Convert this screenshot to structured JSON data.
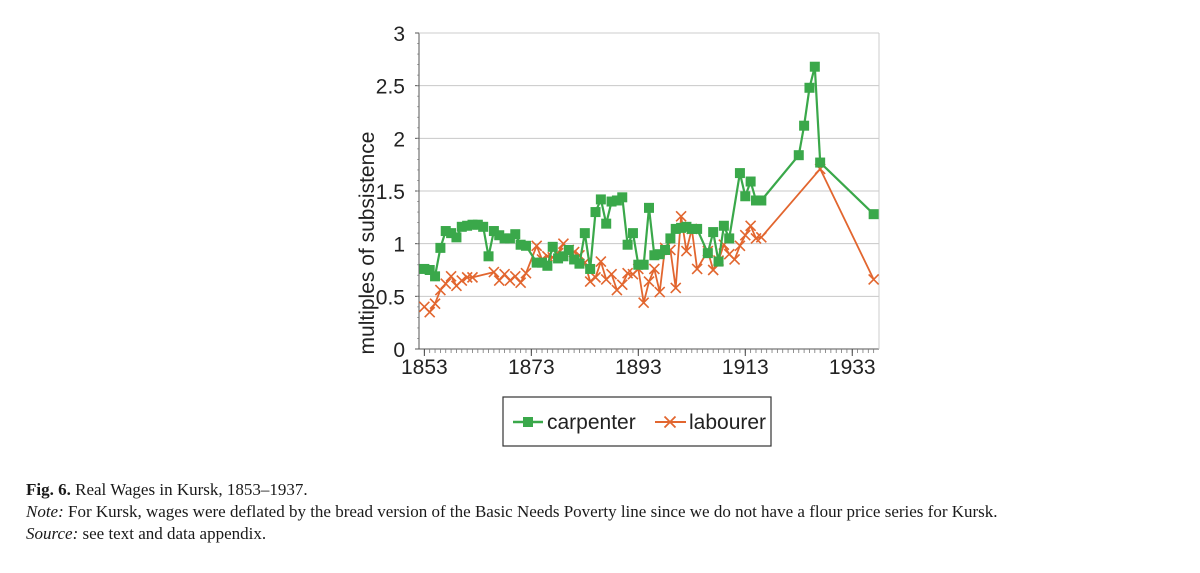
{
  "chart_data": {
    "type": "line",
    "ylabel": "multiples of subsistence",
    "xlabel": "",
    "xlim": [
      1852,
      1938
    ],
    "ylim": [
      0,
      3
    ],
    "x_ticks": [
      "1853",
      "1873",
      "1893",
      "1913",
      "1933"
    ],
    "y_ticks": [
      "0",
      "0.5",
      "1",
      "1.5",
      "2",
      "2.5",
      "3"
    ],
    "grid": "horizontal",
    "legend": "bottom-center",
    "series": [
      {
        "name": "carpenter",
        "color": "#3aa84a",
        "marker": "square",
        "x": [
          1853,
          1854,
          1855,
          1856,
          1857,
          1858,
          1859,
          1860,
          1861,
          1862,
          1863,
          1864,
          1865,
          1866,
          1867,
          1868,
          1869,
          1870,
          1871,
          1872,
          1874,
          1875,
          1876,
          1877,
          1878,
          1879,
          1880,
          1881,
          1882,
          1883,
          1884,
          1885,
          1886,
          1887,
          1888,
          1889,
          1890,
          1891,
          1892,
          1893,
          1894,
          1895,
          1896,
          1897,
          1898,
          1899,
          1900,
          1901,
          1902,
          1903,
          1904,
          1906,
          1907,
          1908,
          1909,
          1910,
          1912,
          1913,
          1914,
          1915,
          1916,
          1923,
          1924,
          1925,
          1926,
          1927,
          1937
        ],
        "y": [
          0.76,
          0.75,
          0.69,
          0.96,
          1.12,
          1.1,
          1.06,
          1.16,
          1.17,
          1.18,
          1.18,
          1.16,
          0.88,
          1.12,
          1.08,
          1.05,
          1.05,
          1.09,
          0.99,
          0.98,
          0.82,
          0.82,
          0.79,
          0.97,
          0.86,
          0.88,
          0.94,
          0.85,
          0.81,
          1.1,
          0.76,
          1.3,
          1.42,
          1.19,
          1.4,
          1.41,
          1.44,
          0.99,
          1.1,
          0.8,
          0.8,
          1.34,
          0.89,
          0.9,
          0.94,
          1.05,
          1.14,
          1.15,
          1.16,
          1.14,
          1.14,
          0.91,
          1.11,
          0.83,
          1.17,
          1.05,
          1.67,
          1.45,
          1.59,
          1.41,
          1.41,
          1.84,
          2.12,
          2.48,
          2.68,
          1.77,
          1.28
        ]
      },
      {
        "name": "labourer",
        "color": "#e2662f",
        "marker": "x",
        "x": [
          1853,
          1854,
          1855,
          1856,
          1857,
          1858,
          1859,
          1860,
          1861,
          1862,
          1866,
          1867,
          1868,
          1869,
          1870,
          1871,
          1872,
          1874,
          1875,
          1876,
          1877,
          1878,
          1879,
          1880,
          1881,
          1882,
          1883,
          1884,
          1885,
          1886,
          1887,
          1888,
          1889,
          1890,
          1891,
          1892,
          1893,
          1894,
          1895,
          1896,
          1897,
          1898,
          1899,
          1900,
          1901,
          1902,
          1903,
          1904,
          1906,
          1907,
          1908,
          1909,
          1910,
          1911,
          1912,
          1913,
          1914,
          1915,
          1916,
          1927,
          1937
        ],
        "y": [
          0.4,
          0.35,
          0.43,
          0.56,
          0.62,
          0.69,
          0.6,
          0.65,
          0.68,
          0.68,
          0.73,
          0.65,
          0.71,
          0.65,
          0.69,
          0.63,
          0.72,
          0.98,
          0.85,
          0.88,
          0.87,
          0.91,
          1.0,
          0.94,
          0.92,
          0.89,
          0.82,
          0.64,
          0.68,
          0.83,
          0.66,
          0.71,
          0.56,
          0.61,
          0.72,
          0.71,
          0.76,
          0.44,
          0.64,
          0.76,
          0.54,
          0.96,
          0.94,
          0.58,
          1.26,
          0.93,
          1.14,
          0.76,
          0.93,
          0.75,
          0.84,
          0.99,
          0.9,
          0.85,
          0.98,
          1.08,
          1.17,
          1.05,
          1.06,
          1.71,
          0.66
        ]
      }
    ]
  },
  "caption": {
    "fig_label": "Fig. 6.",
    "fig_title": " Real Wages in Kursk, 1853–1937.",
    "note_label": "Note:",
    "note_text": " For Kursk, wages were deflated by the bread version of the Basic Needs Poverty line since we do not have a flour price series for Kursk.",
    "source_label": "Source:",
    "source_text": "  see text and data appendix."
  }
}
